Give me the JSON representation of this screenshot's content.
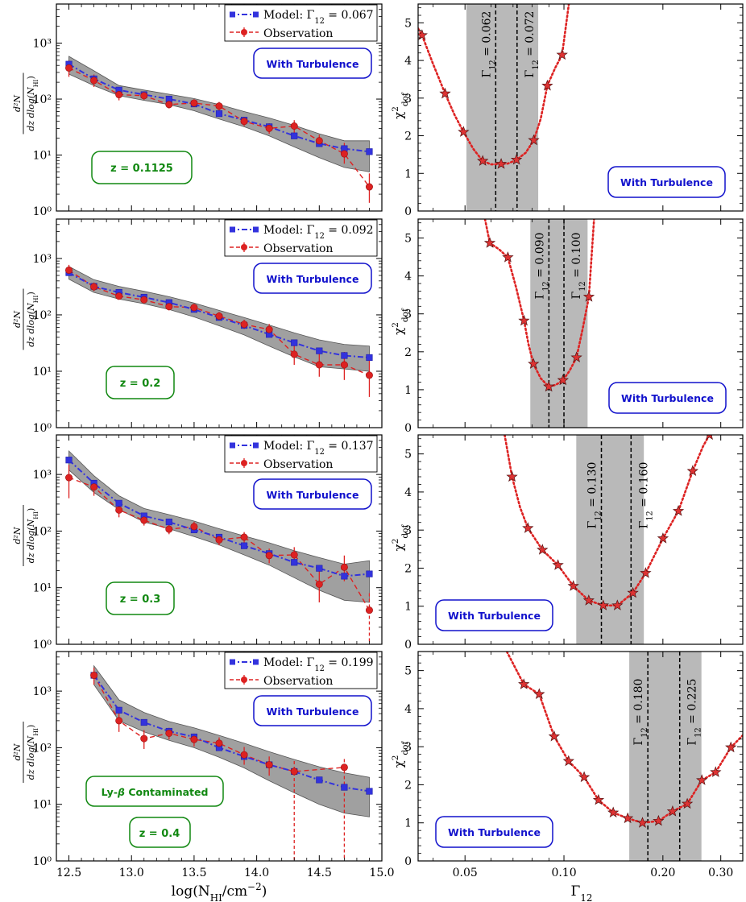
{
  "figure": {
    "left_xlabel": "log(N",
    "left_xlabel_sub": "HI",
    "left_xlabel_tail": "/cm",
    "left_xlabel_sup": "−2",
    "left_xlabel_close": ")",
    "right_xlabel": "Γ",
    "right_xlabel_sub": "12",
    "left_ylabel_num": "d²N",
    "left_ylabel_den": "dz dlog(N",
    "left_ylabel_den_sub": "HI",
    "left_ylabel_den_tail": ")",
    "right_ylabel": "χ",
    "right_ylabel_sup": "2",
    "right_ylabel_sub": "dof",
    "legend_model_prefix": "Model: ",
    "legend_obs": "Observation",
    "turbulence_label": "With Turbulence",
    "colors": {
      "model": "#3333dd",
      "obs": "#dd2222",
      "band": "#808080",
      "chi": "#dd2222",
      "star": "#dd3333",
      "green": "#118811",
      "blue": "#1111cc"
    }
  },
  "chart_data": [
    {
      "type": "line",
      "panel": "cddf",
      "redshift_label": "z = 0.1125",
      "extra_label": "",
      "model_gamma_label": "Γ12 = 0.067",
      "xlabel": "log(NHI/cm−2)",
      "ylabel": "d2N / dz dlog(NHI)",
      "xlim": [
        12.4,
        15.0
      ],
      "ylim": [
        1,
        5000
      ],
      "yscale": "log",
      "xticks": [
        "12.5",
        "13.0",
        "13.5",
        "14.0",
        "14.5",
        "15.0"
      ],
      "yticks": [
        "10⁰",
        "10¹",
        "10²",
        "10³"
      ],
      "x": [
        12.5,
        12.7,
        12.9,
        13.1,
        13.3,
        13.5,
        13.7,
        13.9,
        14.1,
        14.3,
        14.5,
        14.7,
        14.9
      ],
      "series": [
        {
          "name": "Model",
          "values": [
            420,
            230,
            145,
            120,
            100,
            82,
            55,
            42,
            32,
            22,
            16,
            13,
            11.5
          ]
        },
        {
          "name": "Observation",
          "values": [
            360,
            215,
            120,
            115,
            80,
            85,
            75,
            40,
            30,
            33,
            18,
            10.5,
            2.7
          ],
          "err_lo": [
            110,
            50,
            25,
            18,
            12,
            12,
            12,
            7,
            6,
            8,
            4,
            3.5,
            1.3
          ],
          "err_hi": [
            130,
            60,
            30,
            20,
            14,
            14,
            14,
            8,
            7,
            9,
            5,
            6,
            2
          ]
        },
        {
          "name": "Band",
          "lower": [
            280,
            175,
            115,
            95,
            80,
            62,
            44,
            32,
            22,
            14,
            9,
            6,
            5
          ],
          "upper": [
            580,
            320,
            175,
            145,
            122,
            102,
            80,
            60,
            46,
            34,
            24,
            18,
            18
          ]
        }
      ]
    },
    {
      "type": "line",
      "panel": "cddf",
      "redshift_label": "z = 0.2",
      "extra_label": "",
      "model_gamma_label": "Γ12 = 0.092",
      "xlim": [
        12.4,
        15.0
      ],
      "ylim": [
        1,
        5000
      ],
      "yscale": "log",
      "xticks": [
        "12.5",
        "13.0",
        "13.5",
        "14.0",
        "14.5",
        "15.0"
      ],
      "yticks": [
        "10⁰",
        "10¹",
        "10²",
        "10³"
      ],
      "x": [
        12.5,
        12.7,
        12.9,
        13.1,
        13.3,
        13.5,
        13.7,
        13.9,
        14.1,
        14.3,
        14.5,
        14.7,
        14.9
      ],
      "series": [
        {
          "name": "Model",
          "values": [
            560,
            320,
            250,
            205,
            165,
            125,
            90,
            65,
            45,
            32,
            23,
            19,
            17.5
          ]
        },
        {
          "name": "Observation",
          "values": [
            620,
            315,
            215,
            185,
            140,
            135,
            95,
            68,
            55,
            20,
            13,
            13,
            8.5
          ],
          "err_lo": [
            120,
            50,
            30,
            25,
            20,
            20,
            15,
            12,
            12,
            7,
            5,
            6,
            5
          ],
          "err_hi": [
            150,
            60,
            35,
            28,
            22,
            22,
            17,
            14,
            14,
            9,
            8,
            9,
            7
          ]
        },
        {
          "name": "Band",
          "lower": [
            430,
            250,
            190,
            158,
            125,
            92,
            64,
            44,
            28,
            18,
            12,
            11,
            10
          ],
          "upper": [
            720,
            420,
            320,
            262,
            210,
            162,
            120,
            90,
            66,
            48,
            36,
            30,
            28
          ]
        }
      ]
    },
    {
      "type": "line",
      "panel": "cddf",
      "redshift_label": "z = 0.3",
      "extra_label": "",
      "model_gamma_label": "Γ12 = 0.137",
      "xlim": [
        12.4,
        15.0
      ],
      "ylim": [
        1,
        5000
      ],
      "yscale": "log",
      "xticks": [
        "12.5",
        "13.0",
        "13.5",
        "14.0",
        "14.5",
        "15.0"
      ],
      "yticks": [
        "10⁰",
        "10¹",
        "10²",
        "10³"
      ],
      "x": [
        12.5,
        12.7,
        12.9,
        13.1,
        13.3,
        13.5,
        13.7,
        13.9,
        14.1,
        14.3,
        14.5,
        14.7,
        14.9
      ],
      "series": [
        {
          "name": "Model",
          "values": [
            1800,
            700,
            310,
            185,
            145,
            105,
            78,
            55,
            40,
            28,
            22,
            16,
            17.5
          ]
        },
        {
          "name": "Observation",
          "values": [
            880,
            600,
            235,
            155,
            108,
            120,
            70,
            78,
            37,
            38,
            11.5,
            23,
            4
          ],
          "err_lo": [
            500,
            180,
            60,
            30,
            20,
            22,
            14,
            16,
            10,
            12,
            6,
            10,
            3.9
          ],
          "err_hi": [
            600,
            200,
            70,
            35,
            24,
            26,
            16,
            18,
            12,
            14,
            8,
            14,
            4
          ]
        },
        {
          "name": "Band",
          "lower": [
            1200,
            480,
            240,
            145,
            110,
            80,
            57,
            38,
            25,
            15,
            9,
            6,
            5.5
          ],
          "upper": [
            2600,
            950,
            420,
            250,
            195,
            150,
            110,
            82,
            62,
            45,
            34,
            26,
            30
          ]
        }
      ]
    },
    {
      "type": "line",
      "panel": "cddf",
      "redshift_label": "z = 0.4",
      "extra_label": "Ly-β Contaminated",
      "model_gamma_label": "Γ12 = 0.199",
      "xlim": [
        12.4,
        15.0
      ],
      "ylim": [
        1,
        5000
      ],
      "yscale": "log",
      "xticks": [
        "12.5",
        "13.0",
        "13.5",
        "14.0",
        "14.5",
        "15.0"
      ],
      "yticks": [
        "10⁰",
        "10¹",
        "10²",
        "10³"
      ],
      "x": [
        12.7,
        12.9,
        13.1,
        13.3,
        13.5,
        13.7,
        13.9,
        14.1,
        14.3,
        14.5,
        14.7,
        14.9
      ],
      "series": [
        {
          "name": "Model",
          "values": [
            1900,
            460,
            280,
            195,
            155,
            100,
            70,
            50,
            38,
            27,
            20,
            17
          ]
        },
        {
          "name": "Observation",
          "values": [
            1900,
            300,
            145,
            180,
            140,
            120,
            75,
            50,
            38,
            null,
            45,
            null
          ],
          "err_lo": [
            600,
            110,
            50,
            40,
            35,
            30,
            25,
            18,
            37.5,
            null,
            44.5,
            null
          ],
          "err_hi": [
            700,
            130,
            60,
            45,
            38,
            32,
            28,
            20,
            20,
            null,
            18,
            null
          ]
        },
        {
          "name": "Band",
          "lower": [
            1300,
            300,
            190,
            135,
            100,
            68,
            44,
            26,
            16,
            10,
            7,
            6
          ],
          "upper": [
            2800,
            700,
            420,
            290,
            225,
            165,
            120,
            85,
            62,
            46,
            36,
            30
          ]
        }
      ]
    },
    {
      "type": "line",
      "panel": "chi2",
      "gamma_low_label": "Γ12 = 0.062",
      "gamma_high_label": "Γ12 = 0.072",
      "turbulence_pos": "bottom-right",
      "xlim": [
        0.036,
        0.35
      ],
      "ylim": [
        0,
        5.5
      ],
      "xscale": "log",
      "xticks": [
        "0.05",
        "0.10",
        "0.20",
        "0.30"
      ],
      "yticks": [
        "0",
        "1",
        "2",
        "3",
        "4",
        "5"
      ],
      "band": [
        0.0505,
        0.0835
      ],
      "vlines": [
        0.062,
        0.072
      ],
      "x": [
        0.037,
        0.0435,
        0.0495,
        0.0566,
        0.0644,
        0.0717,
        0.0809,
        0.089,
        0.0987
      ],
      "values": [
        4.67,
        3.12,
        2.1,
        1.33,
        1.25,
        1.36,
        1.88,
        3.33,
        4.15
      ],
      "curve_x": [
        0.036,
        0.037,
        0.04,
        0.0435,
        0.0465,
        0.0495,
        0.053,
        0.0566,
        0.06,
        0.0644,
        0.0675,
        0.0717,
        0.0765,
        0.0809,
        0.085,
        0.089,
        0.094,
        0.0987,
        0.1035
      ],
      "curve_y": [
        4.85,
        4.67,
        3.9,
        3.12,
        2.55,
        2.1,
        1.65,
        1.33,
        1.24,
        1.25,
        1.26,
        1.36,
        1.55,
        1.88,
        2.45,
        3.33,
        3.8,
        4.15,
        5.5
      ]
    },
    {
      "type": "line",
      "panel": "chi2",
      "gamma_low_label": "Γ12 = 0.090",
      "gamma_high_label": "Γ12 = 0.100",
      "turbulence_pos": "bottom-right",
      "xlim": [
        0.036,
        0.35
      ],
      "ylim": [
        0,
        5.5
      ],
      "xscale": "log",
      "xticks": [
        "0.05",
        "0.10",
        "0.20",
        "0.30"
      ],
      "yticks": [
        "0",
        "1",
        "2",
        "3",
        "4",
        "5"
      ],
      "band": [
        0.079,
        0.118
      ],
      "vlines": [
        0.09,
        0.1
      ],
      "x": [
        0.0595,
        0.0675,
        0.0756,
        0.0808,
        0.0899,
        0.0993,
        0.1092,
        0.1191
      ],
      "values": [
        4.87,
        4.49,
        2.82,
        1.68,
        1.08,
        1.25,
        1.85,
        3.45
      ],
      "curve_x": [
        0.0575,
        0.0595,
        0.0635,
        0.0675,
        0.0715,
        0.0756,
        0.078,
        0.0808,
        0.085,
        0.0899,
        0.0945,
        0.0993,
        0.104,
        0.1092,
        0.114,
        0.1191,
        0.1235
      ],
      "curve_y": [
        5.5,
        4.87,
        4.7,
        4.49,
        3.7,
        2.82,
        2.2,
        1.68,
        1.3,
        1.08,
        1.13,
        1.25,
        1.5,
        1.85,
        2.6,
        3.45,
        5.5
      ]
    },
    {
      "type": "line",
      "panel": "chi2",
      "gamma_low_label": "Γ12 = 0.130",
      "gamma_high_label": "Γ12 = 0.160",
      "turbulence_pos": "bottom-left",
      "xlim": [
        0.036,
        0.35
      ],
      "ylim": [
        0,
        5.5
      ],
      "xscale": "log",
      "xticks": [
        "0.05",
        "0.10",
        "0.20",
        "0.30"
      ],
      "yticks": [
        "0",
        "1",
        "2",
        "3",
        "4",
        "5"
      ],
      "band": [
        0.109,
        0.175
      ],
      "vlines": [
        0.13,
        0.16
      ],
      "x": [
        0.0695,
        0.0777,
        0.086,
        0.0959,
        0.1068,
        0.119,
        0.1317,
        0.1454,
        0.1621,
        0.1772,
        0.2001,
        0.2229,
        0.2464,
        0.2771
      ],
      "values": [
        4.4,
        3.05,
        2.48,
        2.08,
        1.53,
        1.15,
        1.02,
        1.02,
        1.35,
        1.87,
        2.78,
        3.5,
        4.55,
        5.5
      ],
      "curve_x": [
        0.066,
        0.0695,
        0.0735,
        0.0777,
        0.086,
        0.0959,
        0.1068,
        0.119,
        0.1317,
        0.1454,
        0.1621,
        0.1772,
        0.2001,
        0.2229,
        0.2464,
        0.265,
        0.2771
      ],
      "curve_y": [
        5.5,
        4.4,
        3.6,
        3.05,
        2.48,
        2.08,
        1.53,
        1.15,
        1.02,
        1.02,
        1.35,
        1.87,
        2.78,
        3.5,
        4.55,
        5.2,
        5.5
      ]
    },
    {
      "type": "line",
      "panel": "chi2",
      "gamma_low_label": "Γ12 = 0.180",
      "gamma_high_label": "Γ12 = 0.225",
      "turbulence_pos": "bottom-left",
      "xlim": [
        0.036,
        0.35
      ],
      "ylim": [
        0,
        5.5
      ],
      "xscale": "log",
      "xticks": [
        "0.05",
        "0.10",
        "0.20",
        "0.30"
      ],
      "yticks": [
        "0",
        "1",
        "2",
        "3",
        "4",
        "5"
      ],
      "band": [
        0.158,
        0.262
      ],
      "vlines": [
        0.18,
        0.225
      ],
      "x": [
        0.0755,
        0.0841,
        0.0934,
        0.1033,
        0.1152,
        0.1274,
        0.1412,
        0.1563,
        0.1733,
        0.1939,
        0.2141,
        0.2372,
        0.2627,
        0.2894,
        0.3219
      ],
      "values": [
        4.64,
        4.38,
        3.27,
        2.62,
        2.2,
        1.6,
        1.27,
        1.12,
        1.0,
        1.05,
        1.3,
        1.5,
        2.12,
        2.33,
        2.98
      ],
      "curve_x": [
        0.067,
        0.0755,
        0.0841,
        0.0934,
        0.1033,
        0.1152,
        0.1274,
        0.1412,
        0.1563,
        0.1733,
        0.1939,
        0.2141,
        0.2372,
        0.2627,
        0.2894,
        0.3219,
        0.35
      ],
      "curve_y": [
        5.5,
        4.64,
        4.38,
        3.27,
        2.62,
        2.2,
        1.6,
        1.27,
        1.12,
        1.0,
        1.05,
        1.3,
        1.5,
        2.12,
        2.33,
        2.98,
        3.3
      ]
    }
  ]
}
